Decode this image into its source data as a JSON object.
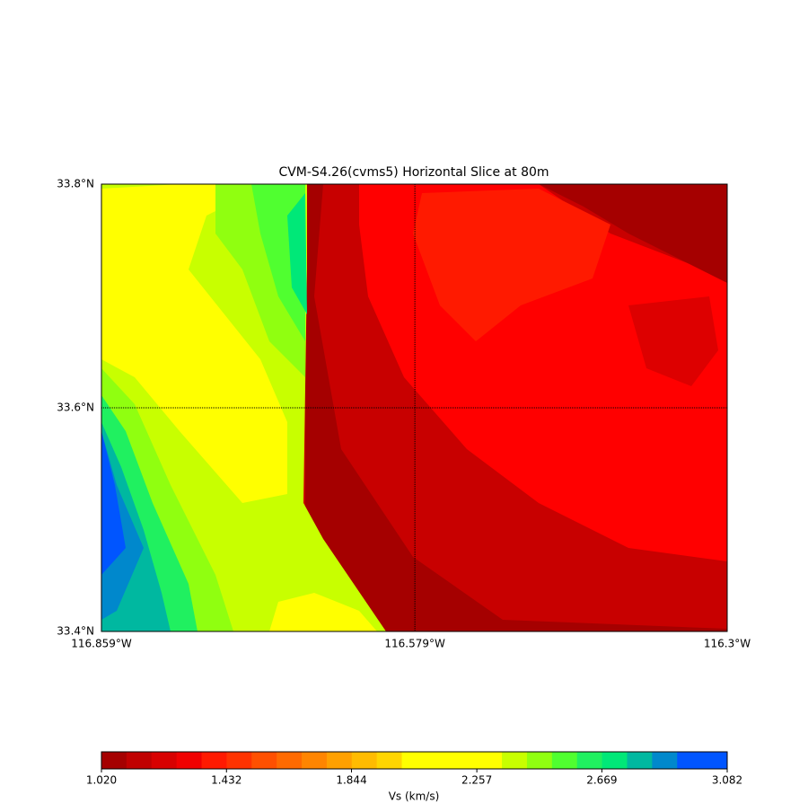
{
  "chart_data": {
    "type": "heatmap",
    "title": "CVM-S4.26(cvms5) Horizontal Slice at 80m",
    "xlim": [
      -116.859,
      -116.3
    ],
    "ylim": [
      33.4,
      33.8
    ],
    "xticks": [
      {
        "value": -116.859,
        "label": "116.859°W"
      },
      {
        "value": -116.579,
        "label": "116.579°W"
      },
      {
        "value": -116.3,
        "label": "116.3°W"
      }
    ],
    "yticks": [
      {
        "value": 33.4,
        "label": "33.4°N"
      },
      {
        "value": 33.6,
        "label": "33.6°N"
      },
      {
        "value": 33.8,
        "label": "33.8°N"
      }
    ],
    "grid": true,
    "colorbar": {
      "label": "Vs (km/s)",
      "clim": [
        1.02,
        3.082
      ],
      "ticks": [
        {
          "value": 1.02,
          "label": "1.020"
        },
        1.432,
        1.844,
        2.257,
        2.669,
        3.082
      ],
      "colors": [
        "#a50000",
        "#c00000",
        "#d80000",
        "#f00000",
        "#ff1a00",
        "#ff3300",
        "#ff5000",
        "#ff6a00",
        "#ff8500",
        "#ffa000",
        "#ffbb00",
        "#ffd500",
        "#ffff00",
        "#ffff00",
        "#ffff00",
        "#ffff00",
        "#c8ff00",
        "#90ff10",
        "#50ff30",
        "#20f060",
        "#00e878",
        "#00b8a0",
        "#0088cc",
        "#0055ff",
        "#0055ff"
      ]
    }
  }
}
